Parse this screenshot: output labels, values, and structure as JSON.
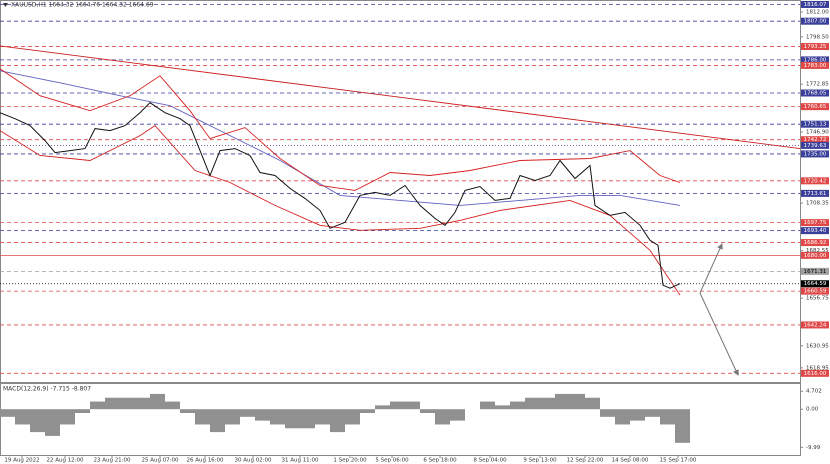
{
  "chart_data": [
    {
      "type": "line",
      "title": "XAUUSD,H1  1664.32 1664.76 1664.32 1664.69",
      "xlim": [
        0,
        160
      ],
      "ylim": [
        1611.3,
        1817.95
      ],
      "xticks": [
        {
          "value": 4.4,
          "label": "19 Aug 2022"
        },
        {
          "value": 13,
          "label": "22 Aug 12:00"
        },
        {
          "value": 22.4,
          "label": "23 Aug 21:00"
        },
        {
          "value": 32,
          "label": "25 Aug 07:00"
        },
        {
          "value": 41,
          "label": "26 Aug 16:00"
        },
        {
          "value": 50.6,
          "label": "30 Aug 02:00"
        },
        {
          "value": 60,
          "label": "31 Aug 11:00"
        },
        {
          "value": 70,
          "label": "1 Sep 20:00"
        },
        {
          "value": 78.4,
          "label": "5 Sep 06:00"
        },
        {
          "value": 88,
          "label": "6 Sep 18:00"
        },
        {
          "value": 98,
          "label": "8 Sep 04:00"
        },
        {
          "value": 108,
          "label": "9 Sep 13:00"
        },
        {
          "value": 117,
          "label": "12 Sep 22:00"
        },
        {
          "value": 126,
          "label": "14 Sep 08:00"
        },
        {
          "value": 135.6,
          "label": "15 Sep 17:00"
        }
      ],
      "yticks": [
        {
          "value": 1812,
          "label": "1812.00"
        },
        {
          "value": 1798.5,
          "label": "1798.50"
        },
        {
          "value": 1772.85,
          "label": "1772.85"
        },
        {
          "value": 1746.9,
          "label": "1746.90"
        },
        {
          "value": 1708.35,
          "label": "1708.35"
        },
        {
          "value": 1682.55,
          "label": "1682.55"
        },
        {
          "value": 1656.75,
          "label": "1656.75"
        },
        {
          "value": 1630.95,
          "label": "1630.95"
        },
        {
          "value": 1618.95,
          "label": "1618.95"
        }
      ],
      "levels": [
        {
          "value": 1816.07,
          "label": "1816.07",
          "color": "#3a3f9a",
          "style": "dashed"
        },
        {
          "value": 1807,
          "label": "1807.00",
          "color": "#3a3f9a",
          "style": "dashed"
        },
        {
          "value": 1793.25,
          "label": "1793.25",
          "color": "#e04848",
          "style": "dashed"
        },
        {
          "value": 1786,
          "label": "1786.00",
          "color": "#3a3f9a",
          "style": "dashed"
        },
        {
          "value": 1783,
          "label": "1783.00",
          "color": "#e04848",
          "style": "dashed"
        },
        {
          "value": 1768.05,
          "label": "1768.05",
          "color": "#3a3f9a",
          "style": "dashed"
        },
        {
          "value": 1760.65,
          "label": "1760.65",
          "color": "#e04848",
          "style": "dashed"
        },
        {
          "value": 1751.13,
          "label": "1751.13",
          "color": "#3a3f9a",
          "style": "dashed"
        },
        {
          "value": 1742.72,
          "label": "1742.72",
          "color": "#e04848",
          "style": "dashed"
        },
        {
          "value": 1739.63,
          "label": "1739.63",
          "color": "#3a3f9a",
          "style": "dotted"
        },
        {
          "value": 1735,
          "label": "1735.00",
          "color": "#3a3f9a",
          "style": "dashed"
        },
        {
          "value": 1720.42,
          "label": "1720.42",
          "color": "#e04848",
          "style": "dashed"
        },
        {
          "value": 1713.61,
          "label": "1713.61",
          "color": "#3a3f9a",
          "style": "dashed"
        },
        {
          "value": 1697.75,
          "label": "1697.75",
          "color": "#e04848",
          "style": "dashed"
        },
        {
          "value": 1693.4,
          "label": "1693.40",
          "color": "#3a3f9a",
          "style": "dashed"
        },
        {
          "value": 1686.92,
          "label": "1686.92",
          "color": "#e04848",
          "style": "dashed"
        },
        {
          "value": 1680,
          "label": "1680.00",
          "color": "#e04848",
          "style": "solid"
        },
        {
          "value": 1671.31,
          "label": "1671.31",
          "color": "#a0a0a0",
          "style": "dashed"
        },
        {
          "value": 1664.59,
          "label": "1664.59",
          "color": "#000000",
          "style": "dotted"
        },
        {
          "value": 1660.59,
          "label": "1660.59",
          "color": "#e04848",
          "style": "dashed"
        },
        {
          "value": 1642.24,
          "label": "1642.24",
          "color": "#e04848",
          "style": "dashed"
        },
        {
          "value": 1616,
          "label": "1616.00",
          "color": "#e04848",
          "style": "dashed"
        }
      ],
      "series": [
        {
          "color": "#c81e1e",
          "x": [
            0,
            160
          ],
          "values": [
            1793.6,
            1737.9
          ]
        },
        {
          "color": "#6060c0",
          "x": [
            0,
            12,
            24,
            34,
            44,
            56,
            68,
            80,
            92,
            104,
            116,
            124,
            136
          ],
          "values": [
            1780.09,
            1773.6,
            1766.57,
            1761.17,
            1747.65,
            1731.42,
            1712.49,
            1709.79,
            1707.08,
            1709.79,
            1712.49,
            1712.49,
            1707.08
          ]
        },
        {
          "color": "#d42020",
          "x": [
            0,
            8,
            18,
            26,
            32,
            38,
            42,
            49,
            56,
            64,
            71,
            78,
            86,
            94,
            104,
            118,
            126,
            132,
            136
          ],
          "values": [
            1781.18,
            1766.57,
            1758.46,
            1766.57,
            1777.39,
            1758.46,
            1743.32,
            1749.27,
            1732.5,
            1717.9,
            1715.2,
            1724.93,
            1723.31,
            1726.02,
            1731.42,
            1732.5,
            1736.83,
            1723.31,
            1719.52
          ]
        },
        {
          "color": "#d42020",
          "x": [
            0,
            8,
            18,
            28,
            31,
            39,
            46,
            55,
            64,
            72,
            84,
            92,
            100,
            114,
            122,
            130,
            136
          ],
          "values": [
            1747.65,
            1734.13,
            1731.42,
            1744.94,
            1750.35,
            1726.01,
            1719.52,
            1707.08,
            1696.27,
            1693.57,
            1694.65,
            1698.97,
            1704.38,
            1709.79,
            1701.68,
            1682.75,
            1658.41
          ]
        },
        {
          "color": "#111111",
          "x": [
            0,
            3,
            6,
            9,
            11,
            14,
            17,
            19,
            22,
            25,
            28,
            30,
            33,
            36,
            38,
            40,
            42,
            44,
            47,
            50,
            52,
            55,
            58,
            61,
            64,
            66,
            69,
            72,
            75,
            78,
            81,
            84,
            87,
            89,
            91,
            93,
            96,
            99,
            102,
            104,
            107,
            110,
            112,
            115,
            118,
            119,
            122,
            125,
            128,
            130,
            131.6,
            132.6,
            134,
            136
          ],
          "values": [
            1757.38,
            1754.13,
            1750.35,
            1742.24,
            1735.75,
            1736.83,
            1737.91,
            1748.73,
            1747.65,
            1750.35,
            1757.38,
            1762.79,
            1757.38,
            1754.13,
            1750.35,
            1736.83,
            1723.31,
            1736.83,
            1737.91,
            1734.13,
            1724.93,
            1723.31,
            1716.28,
            1710.87,
            1704.38,
            1694.65,
            1697.89,
            1712.49,
            1714.12,
            1712.49,
            1717.9,
            1707.08,
            1700.05,
            1696.27,
            1703.3,
            1715.2,
            1717.36,
            1709.79,
            1710.87,
            1723.31,
            1720.61,
            1723.31,
            1731.42,
            1721.69,
            1728.72,
            1707.08,
            1701.68,
            1703.3,
            1696.27,
            1688.16,
            1685.45,
            1663.82,
            1662.2,
            1664.59
          ]
        }
      ]
    },
    {
      "type": "bar",
      "title": "MACD(12,26,9) -7.715 -8.807",
      "color": "#909090",
      "xlim": [
        0,
        160
      ],
      "ylim": [
        -12,
        6.6
      ],
      "yticks": [
        4.702,
        {
          "value": 0,
          "label": "0.00"
        },
        -9.99
      ],
      "x": [
        0,
        3,
        6,
        9,
        12,
        15,
        18,
        21,
        24,
        27,
        30,
        33,
        36,
        39,
        42,
        45,
        48,
        51,
        54,
        57,
        60,
        63,
        66,
        69,
        72,
        75,
        78,
        81,
        84,
        87,
        90,
        93,
        96,
        99,
        102,
        105,
        108,
        111,
        114,
        117,
        120,
        123,
        126,
        129,
        132,
        135
      ],
      "values": [
        -2,
        -4,
        -6,
        -7,
        -4,
        -1,
        2,
        3,
        3,
        3,
        4,
        2,
        -1,
        -4,
        -6,
        -4,
        -2,
        -3,
        -4,
        -5,
        -5,
        -4,
        -6,
        -4,
        -1,
        1,
        2,
        2,
        -1,
        -4,
        -3,
        0,
        2,
        1,
        2,
        3,
        3,
        4,
        4,
        3,
        -2,
        -4,
        -3,
        -2,
        -4,
        -8.807
      ]
    }
  ]
}
